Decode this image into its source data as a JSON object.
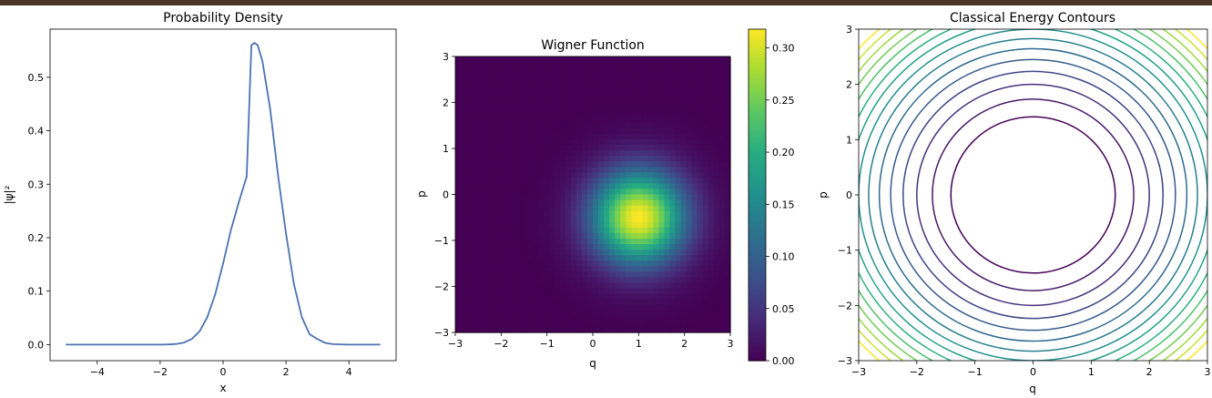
{
  "chart_data": [
    {
      "type": "line",
      "title": "Probability Density",
      "xlabel": "x",
      "ylabel": "|ψ|²",
      "xlim": [
        -5.5,
        5.5
      ],
      "ylim": [
        -0.03,
        0.59
      ],
      "xticks": [
        -4,
        -2,
        0,
        2,
        4
      ],
      "yticks": [
        0.0,
        0.1,
        0.2,
        0.3,
        0.4,
        0.5
      ],
      "grid": false,
      "line_color": "#4c72b0",
      "x": [
        -5.0,
        -4.5,
        -4.0,
        -3.5,
        -3.0,
        -2.5,
        -2.0,
        -1.75,
        -1.5,
        -1.25,
        -1.0,
        -0.75,
        -0.5,
        -0.25,
        0.0,
        0.25,
        0.5,
        0.75,
        0.9,
        1.0,
        1.1,
        1.25,
        1.5,
        1.75,
        2.0,
        2.25,
        2.5,
        2.75,
        3.0,
        3.25,
        3.5,
        4.0,
        4.5,
        5.0
      ],
      "y": [
        0.0,
        0.0,
        0.0,
        0.0,
        0.0,
        0.0,
        0.0,
        0.0003,
        0.0012,
        0.0038,
        0.0103,
        0.0247,
        0.0516,
        0.0944,
        0.1518,
        0.2145,
        0.2665,
        0.3142,
        0.56,
        0.5642,
        0.56,
        0.53,
        0.4394,
        0.3142,
        0.2076,
        0.114,
        0.0516,
        0.0194,
        0.0103,
        0.003,
        0.0008,
        0.0,
        0.0,
        0.0
      ]
    },
    {
      "type": "heatmap",
      "title": "Wigner Function",
      "xlabel": "q",
      "ylabel": "p",
      "xlim": [
        -3,
        3
      ],
      "ylim": [
        -3,
        3
      ],
      "xticks": [
        -3,
        -2,
        -1,
        0,
        1,
        2,
        3
      ],
      "yticks": [
        -3,
        -2,
        -1,
        0,
        1,
        2,
        3
      ],
      "colormap": "viridis",
      "grid_size": 50,
      "peak_center": {
        "q": 1.0,
        "p": -0.5
      },
      "peak_value": 0.318,
      "width": 0.707,
      "colorbar": {
        "min": 0.0,
        "max": 0.318,
        "ticks": [
          0.0,
          0.05,
          0.1,
          0.15,
          0.2,
          0.25,
          0.3
        ]
      }
    },
    {
      "type": "contour",
      "title": "Classical Energy Contours",
      "xlabel": "q",
      "ylabel": "p",
      "xlim": [
        -3,
        3
      ],
      "ylim": [
        -3,
        3
      ],
      "xticks": [
        -3,
        -2,
        -1,
        0,
        1,
        2,
        3
      ],
      "yticks": [
        -3,
        -2,
        -1,
        0,
        1,
        2,
        3
      ],
      "colormap": "viridis",
      "energy_levels": [
        1,
        1.5,
        2,
        2.5,
        3,
        3.5,
        4,
        4.5,
        5,
        5.5,
        6,
        6.5,
        7,
        7.5,
        8
      ],
      "level_range": [
        1,
        8
      ]
    }
  ]
}
